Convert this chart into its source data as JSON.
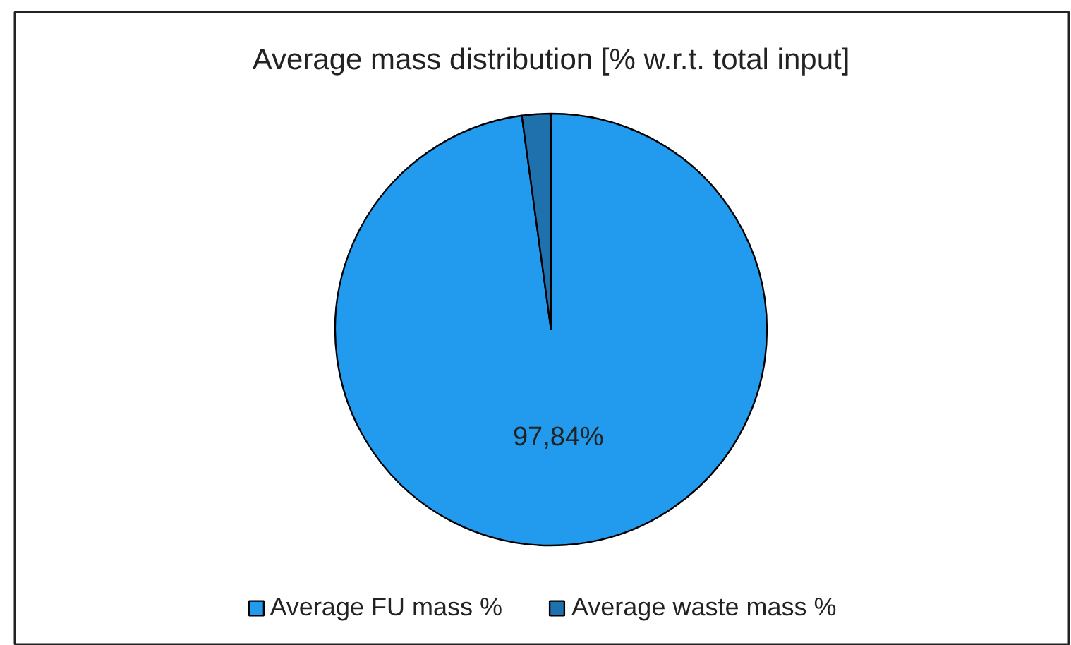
{
  "chart_data": {
    "type": "pie",
    "title": "Average mass distribution [% w.r.t. total input]",
    "categories": [
      "Average FU mass %",
      "Average waste mass %"
    ],
    "values": [
      97.84,
      2.16
    ],
    "colors": [
      "#229aed",
      "#1f71ae"
    ],
    "value_labels": [
      "97,84%",
      null
    ],
    "legend": "bottom"
  }
}
